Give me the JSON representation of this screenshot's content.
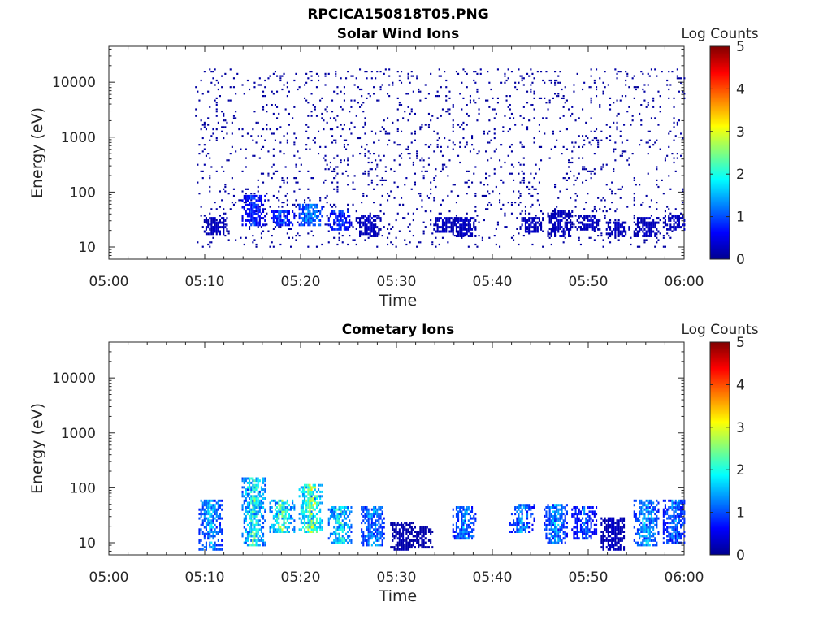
{
  "figure": {
    "title": "RPCICA150818T05.PNG"
  },
  "chart_data": [
    {
      "type": "heatmap",
      "title": "Solar Wind Ions",
      "xlabel": "Time",
      "ylabel": "Energy (eV)",
      "x_ticks": [
        "05:00",
        "05:10",
        "05:20",
        "05:30",
        "05:40",
        "05:50",
        "06:00"
      ],
      "xlim": [
        "05:00",
        "06:00"
      ],
      "y_scale": "log",
      "y_ticks": [
        10,
        100,
        1000,
        10000
      ],
      "ylim": [
        6,
        45000
      ],
      "colorbar": {
        "label": "Log Counts",
        "range": [
          0,
          5
        ],
        "ticks": [
          0,
          1,
          2,
          3,
          4,
          5
        ],
        "colormap": "jet"
      },
      "data_start": "05:09",
      "low_energy_bursts": [
        {
          "t": "05:11",
          "e_min": 16,
          "e_max": 35,
          "level": 0.3
        },
        {
          "t": "05:15",
          "e_min": 25,
          "e_max": 90,
          "level": 0.8
        },
        {
          "t": "05:18",
          "e_min": 25,
          "e_max": 45,
          "level": 1.0
        },
        {
          "t": "05:21",
          "e_min": 25,
          "e_max": 60,
          "level": 1.4
        },
        {
          "t": "05:24",
          "e_min": 20,
          "e_max": 45,
          "level": 0.9
        },
        {
          "t": "05:27",
          "e_min": 15,
          "e_max": 40,
          "level": 0.3
        },
        {
          "t": "05:35",
          "e_min": 18,
          "e_max": 35,
          "level": 0.3
        },
        {
          "t": "05:37",
          "e_min": 15,
          "e_max": 35,
          "level": 0.3
        },
        {
          "t": "05:44",
          "e_min": 18,
          "e_max": 35,
          "level": 0.3
        },
        {
          "t": "05:47",
          "e_min": 15,
          "e_max": 45,
          "level": 0.3
        },
        {
          "t": "05:50",
          "e_min": 20,
          "e_max": 40,
          "level": 0.3
        },
        {
          "t": "05:53",
          "e_min": 15,
          "e_max": 30,
          "level": 0.3
        },
        {
          "t": "05:56",
          "e_min": 15,
          "e_max": 35,
          "level": 0.3
        },
        {
          "t": "05:59",
          "e_min": 20,
          "e_max": 40,
          "level": 0.3
        }
      ],
      "background": {
        "e_min": 10,
        "e_max": 18000,
        "level": 0.1
      }
    },
    {
      "type": "heatmap",
      "title": "Cometary Ions",
      "xlabel": "Time",
      "ylabel": "Energy (eV)",
      "x_ticks": [
        "05:00",
        "05:10",
        "05:20",
        "05:30",
        "05:40",
        "05:50",
        "06:00"
      ],
      "xlim": [
        "05:00",
        "06:00"
      ],
      "y_scale": "log",
      "y_ticks": [
        10,
        100,
        1000,
        10000
      ],
      "ylim": [
        6,
        45000
      ],
      "colorbar": {
        "label": "Log Counts",
        "range": [
          0,
          5
        ],
        "ticks": [
          0,
          1,
          2,
          3,
          4,
          5
        ],
        "colormap": "jet"
      },
      "data_start": "05:09",
      "bursts": [
        {
          "t": "05:10.5",
          "e_min": 7,
          "e_max": 60,
          "level": 1.5
        },
        {
          "t": "05:15",
          "e_min": 9,
          "e_max": 150,
          "level": 2.0
        },
        {
          "t": "05:18",
          "e_min": 15,
          "e_max": 60,
          "level": 2.3
        },
        {
          "t": "05:21",
          "e_min": 15,
          "e_max": 120,
          "level": 2.5
        },
        {
          "t": "05:24",
          "e_min": 10,
          "e_max": 45,
          "level": 1.9
        },
        {
          "t": "05:27.5",
          "e_min": 9,
          "e_max": 45,
          "level": 1.4
        },
        {
          "t": "05:30.5",
          "e_min": 7,
          "e_max": 25,
          "level": 0.2
        },
        {
          "t": "05:32.5",
          "e_min": 8,
          "e_max": 20,
          "level": 0.2
        },
        {
          "t": "05:37",
          "e_min": 12,
          "e_max": 45,
          "level": 1.3
        },
        {
          "t": "05:43",
          "e_min": 15,
          "e_max": 50,
          "level": 1.3
        },
        {
          "t": "05:46.5",
          "e_min": 10,
          "e_max": 50,
          "level": 1.4
        },
        {
          "t": "05:49.5",
          "e_min": 12,
          "e_max": 45,
          "level": 1.0
        },
        {
          "t": "05:52.5",
          "e_min": 7,
          "e_max": 30,
          "level": 0.3
        },
        {
          "t": "05:56",
          "e_min": 9,
          "e_max": 60,
          "level": 1.5
        },
        {
          "t": "05:59",
          "e_min": 10,
          "e_max": 60,
          "level": 1.2
        }
      ]
    }
  ]
}
